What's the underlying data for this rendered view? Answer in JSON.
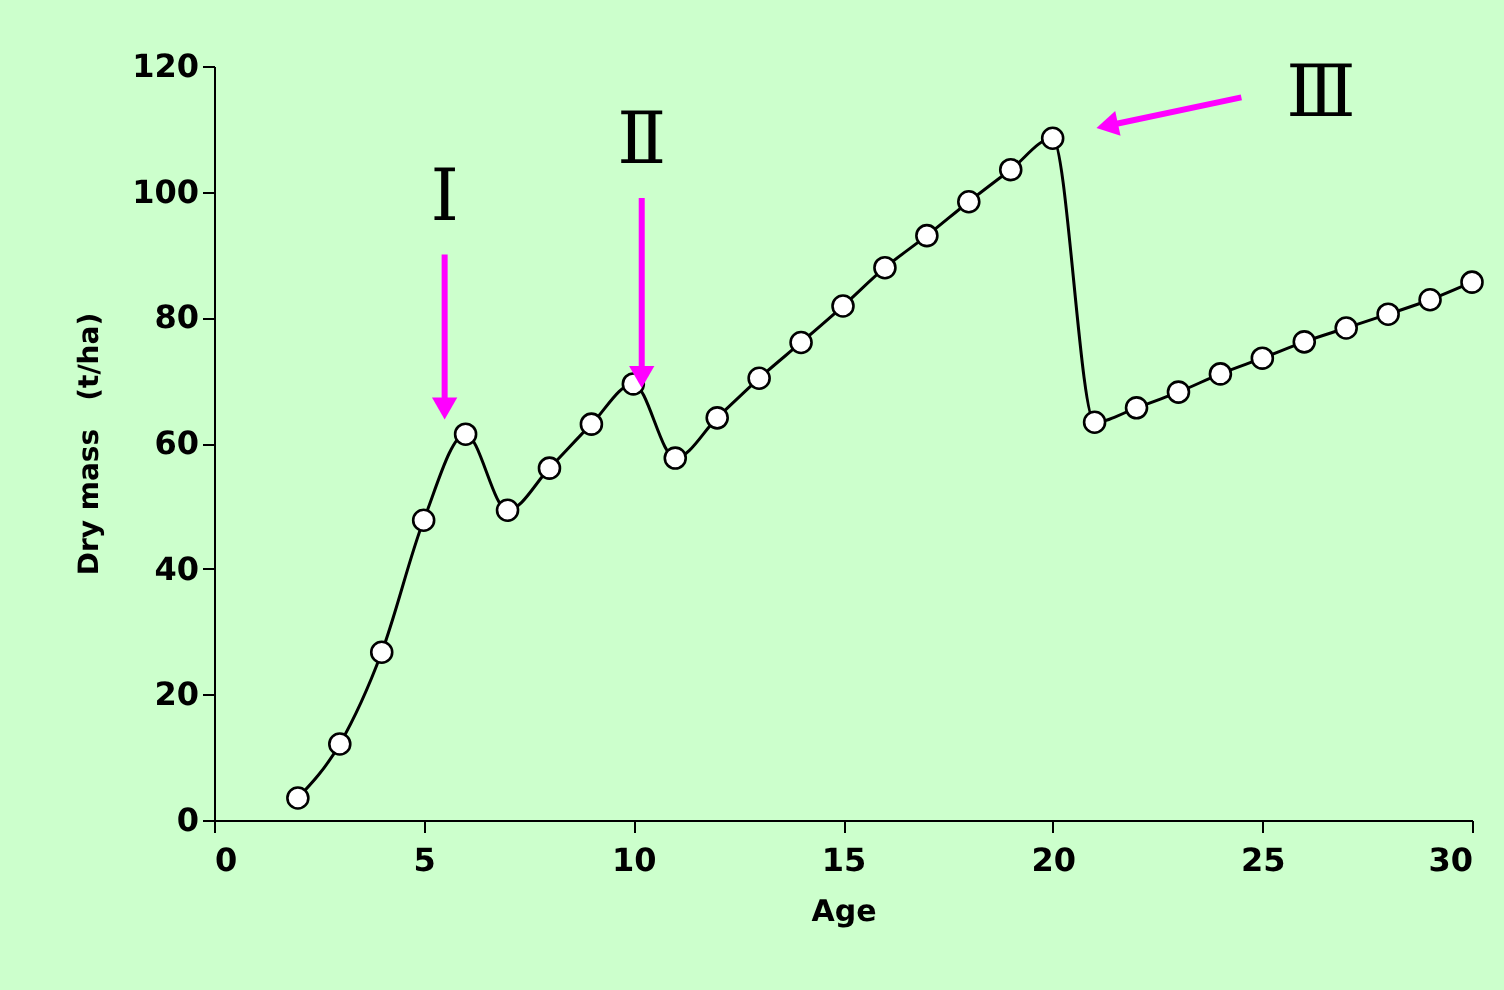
{
  "chart_data": {
    "type": "line",
    "xlabel": "Age",
    "ylabel": "Dry mass　(t/ha)",
    "x": [
      2,
      3,
      4,
      5,
      6,
      7,
      8,
      9,
      10,
      11,
      12,
      13,
      14,
      15,
      16,
      17,
      18,
      19,
      20,
      21,
      22,
      23,
      24,
      25,
      26,
      27,
      28,
      29,
      30
    ],
    "series": [
      {
        "color": "#000000",
        "values": [
          3.5,
          12.1,
          26.7,
          47.7,
          61.4,
          49.3,
          56,
          63,
          69.4,
          57.6,
          64,
          70.3,
          76,
          81.8,
          87.9,
          93,
          98.4,
          103.5,
          108.5,
          63.3,
          65.6,
          68.1,
          71,
          73.5,
          76.1,
          78.3,
          80.5,
          82.8,
          85.6
        ]
      }
    ],
    "xlim": [
      0,
      30
    ],
    "xticks": [
      0,
      5,
      10,
      15,
      20,
      25,
      30
    ],
    "ylim": [
      0,
      120
    ],
    "yticks": [
      0,
      20,
      40,
      60,
      80,
      100,
      120
    ],
    "marker": "circle",
    "line_style": "solid",
    "grid": false,
    "annotations": [
      {
        "text": "Ⅰ",
        "x": 5.5,
        "y": 63
      },
      {
        "text": "Ⅱ",
        "x": 10.2,
        "y": 68
      },
      "Ⅲ"
    ]
  }
}
